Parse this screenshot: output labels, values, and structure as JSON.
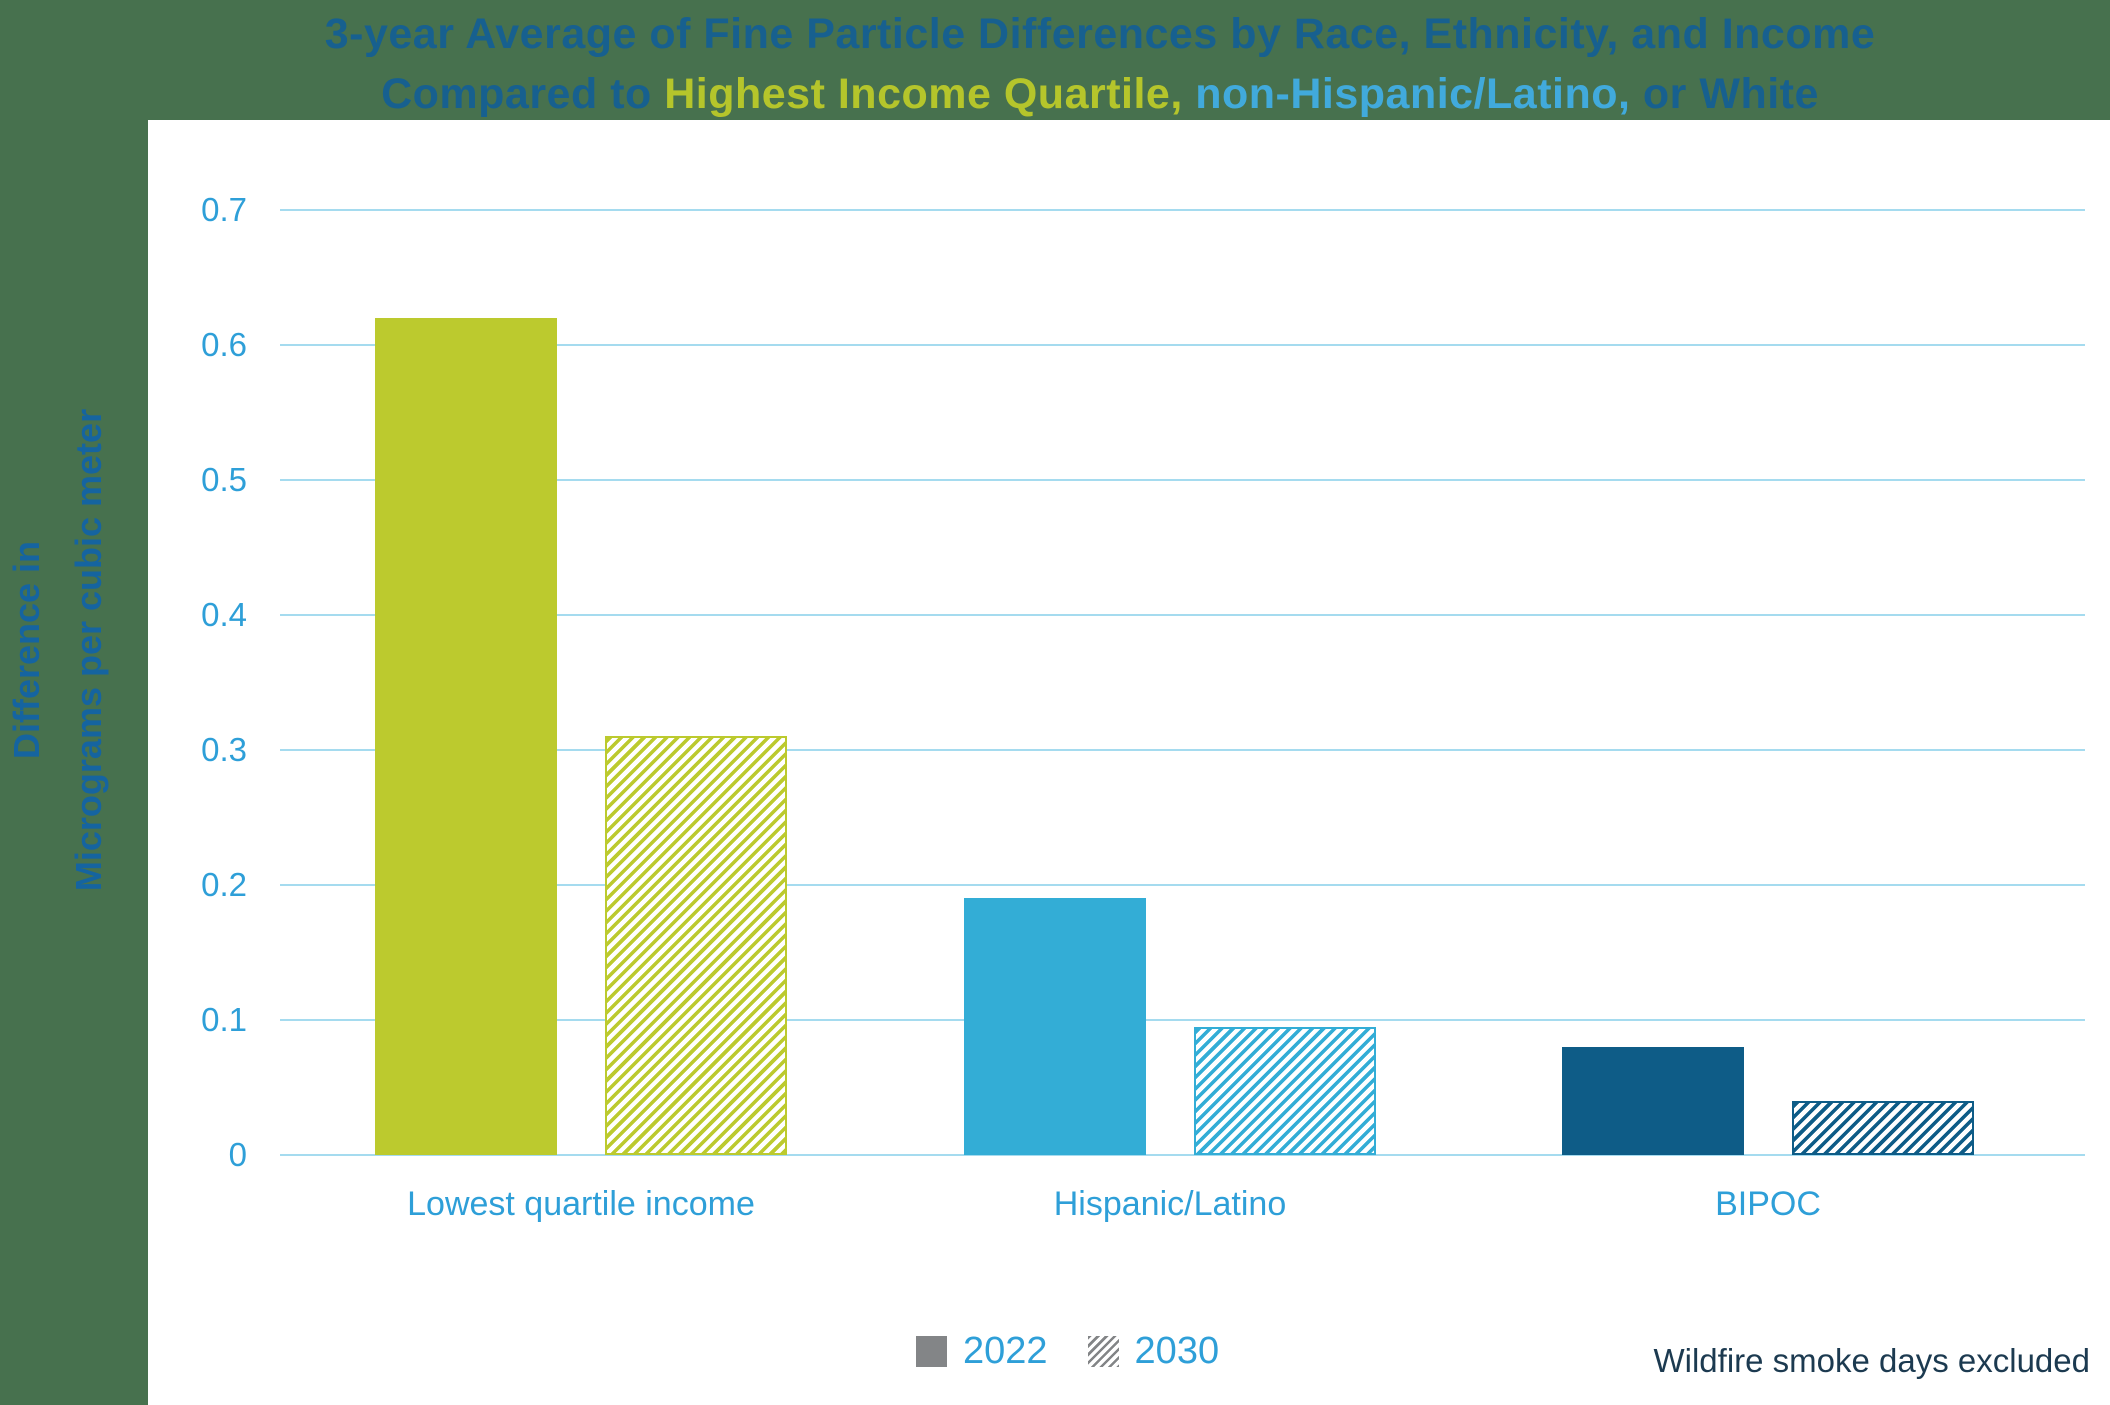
{
  "colors": {
    "background": "#47714E",
    "panel": "#FFFFFF",
    "title_dark": "#17608F",
    "title_lime": "#B5C52B",
    "title_light_blue": "#41AADC",
    "axis_title": "#1564A0",
    "tick_label": "#2E9FD8",
    "category_label": "#2E9FD8",
    "gridline": "#A5DBEF",
    "bar_lime": "#BCCA2E",
    "bar_light_blue": "#33ADD6",
    "bar_dark_blue": "#0E5C87",
    "legend_gray": "#838587",
    "legend_text": "#2E9FD8",
    "note_text": "#1C3A50"
  },
  "title": {
    "line1": "3-year Average of Fine Particle Differences by Race, Ethnicity, and Income",
    "line2_parts": [
      {
        "text": "Compared to ",
        "color": "title_dark"
      },
      {
        "text": "Highest Income Quartile,",
        "color": "title_lime"
      },
      {
        "text": " non-Hispanic/Latino,",
        "color": "title_light_blue"
      },
      {
        "text": " or White",
        "color": "title_dark"
      }
    ]
  },
  "y_axis": {
    "label_line1": "Difference in",
    "label_line2": "Micrograms per cubic meter",
    "ticks": [
      "0.7",
      "0.6",
      "0.5",
      "0.4",
      "0.3",
      "0.2",
      "0.1",
      "0"
    ]
  },
  "legend": {
    "items": [
      {
        "label": "2022",
        "swatch": "solid"
      },
      {
        "label": "2030",
        "swatch": "hatched"
      }
    ]
  },
  "note": "Wildfire smoke days excluded",
  "chart_data": {
    "type": "bar",
    "title": "3-year Average of Fine Particle Differences by Race, Ethnicity, and Income Compared to Highest Income Quartile, non-Hispanic/Latino, or White",
    "categories": [
      "Lowest quartile income",
      "Hispanic/Latino",
      "BIPOC"
    ],
    "series": [
      {
        "name": "2022",
        "pattern": "solid",
        "values": [
          0.62,
          0.19,
          0.08
        ]
      },
      {
        "name": "2030",
        "pattern": "hatched",
        "values": [
          0.31,
          0.095,
          0.04
        ]
      }
    ],
    "category_colors": [
      "#BCCA2E",
      "#33ADD6",
      "#0E5C87"
    ],
    "ylabel": "Difference in Micrograms per cubic meter",
    "ylim": [
      0,
      0.7
    ],
    "ytick_step": 0.1,
    "grid": true,
    "legend_position": "bottom",
    "note": "Wildfire smoke days excluded"
  }
}
